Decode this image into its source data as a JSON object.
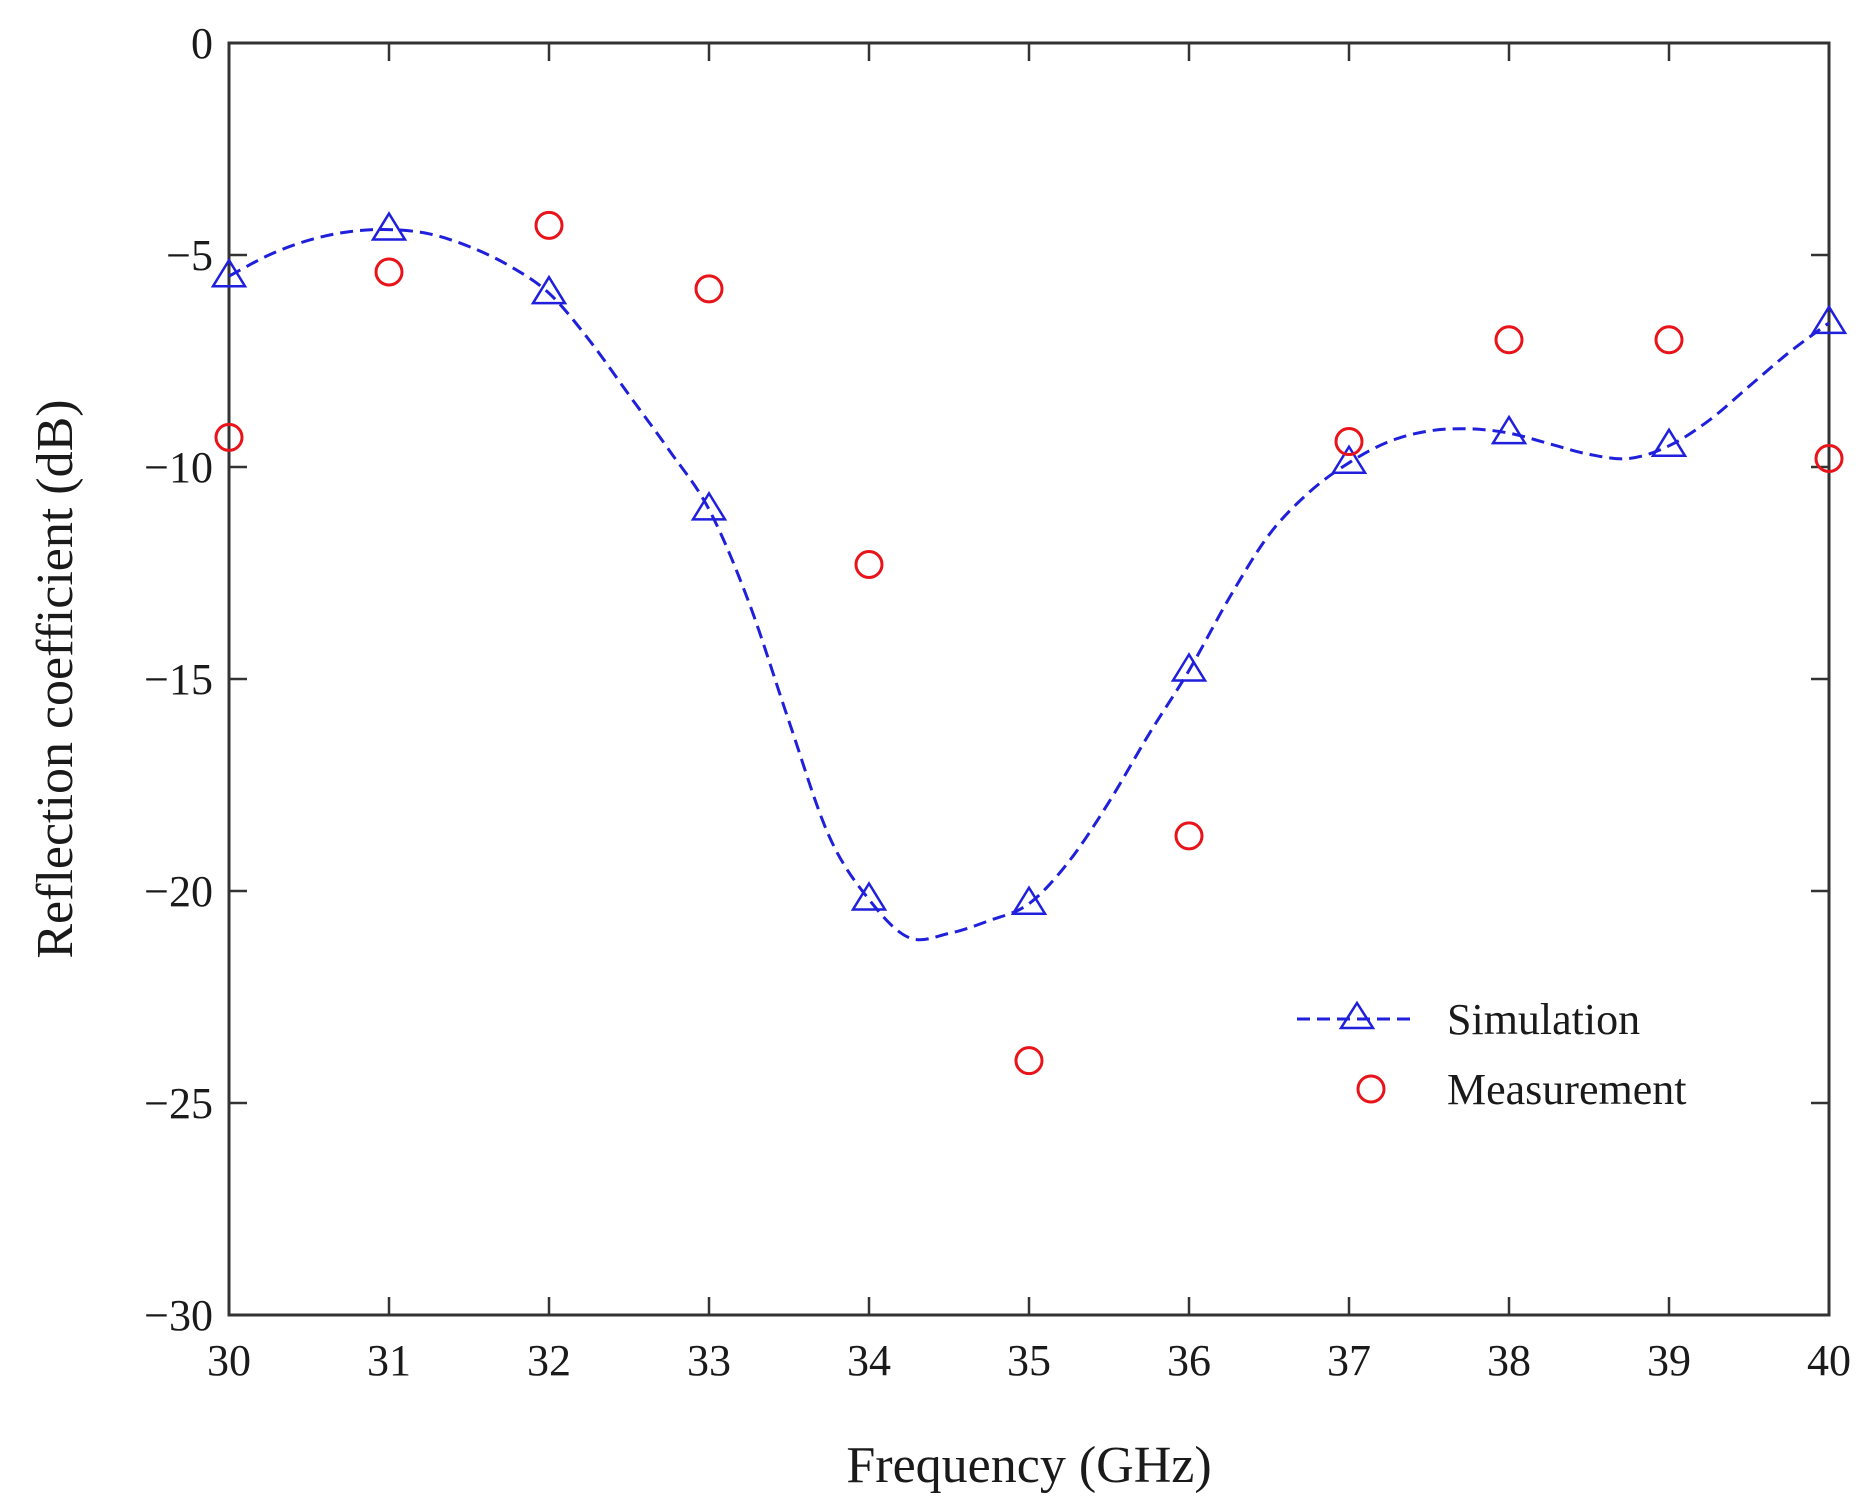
{
  "chart_data": {
    "type": "line",
    "xlabel": "Frequency (GHz)",
    "ylabel": "Reflection coefficient (dB)",
    "xlim": [
      30,
      40
    ],
    "ylim": [
      -30,
      0
    ],
    "x_ticks": [
      30,
      31,
      32,
      33,
      34,
      35,
      36,
      37,
      38,
      39,
      40
    ],
    "y_ticks": [
      0,
      -5,
      -10,
      -15,
      -20,
      -25,
      -30
    ],
    "x_tick_labels": [
      "30",
      "31",
      "32",
      "33",
      "34",
      "35",
      "36",
      "37",
      "38",
      "39",
      "40"
    ],
    "y_tick_labels": [
      "0",
      "−5",
      "−10",
      "−15",
      "−20",
      "−25",
      "−30"
    ],
    "grid": false,
    "legend_position": "lower-right",
    "series": [
      {
        "name": "Simulation",
        "style": "dashed-line-triangle-markers",
        "color": "#1f1fdc",
        "x": [
          30,
          31,
          32,
          33,
          34,
          35,
          36,
          37,
          38,
          39,
          40
        ],
        "y": [
          -5.5,
          -4.4,
          -5.9,
          -11.0,
          -20.2,
          -20.3,
          -14.8,
          -9.9,
          -9.2,
          -9.5,
          -6.6
        ],
        "curve_x": [
          30,
          30.25,
          30.5,
          30.75,
          31,
          31.25,
          31.5,
          31.75,
          32,
          32.25,
          32.5,
          32.75,
          33,
          33.25,
          33.5,
          33.75,
          34,
          34.25,
          34.5,
          34.75,
          35,
          35.25,
          35.5,
          35.75,
          36,
          36.25,
          36.5,
          36.75,
          37,
          37.25,
          37.5,
          37.75,
          38,
          38.25,
          38.5,
          38.75,
          39,
          39.25,
          39.5,
          39.75,
          40
        ],
        "curve_y": [
          -5.5,
          -5.0,
          -4.65,
          -4.45,
          -4.4,
          -4.5,
          -4.8,
          -5.25,
          -5.9,
          -7.0,
          -8.3,
          -9.6,
          -11.0,
          -13.2,
          -16.0,
          -18.7,
          -20.2,
          -21.1,
          -21.0,
          -20.7,
          -20.3,
          -19.3,
          -17.9,
          -16.3,
          -14.8,
          -13.1,
          -11.6,
          -10.6,
          -9.9,
          -9.4,
          -9.15,
          -9.1,
          -9.2,
          -9.45,
          -9.7,
          -9.8,
          -9.5,
          -8.9,
          -8.1,
          -7.3,
          -6.6
        ]
      },
      {
        "name": "Measurement",
        "style": "circle-markers",
        "color": "#e8141a",
        "x": [
          30,
          31,
          32,
          33,
          34,
          35,
          36,
          37,
          38,
          39,
          40
        ],
        "y": [
          -9.3,
          -5.4,
          -4.3,
          -5.8,
          -12.3,
          -24.0,
          -18.7,
          -9.4,
          -7.0,
          -7.0,
          -9.8
        ]
      }
    ]
  }
}
